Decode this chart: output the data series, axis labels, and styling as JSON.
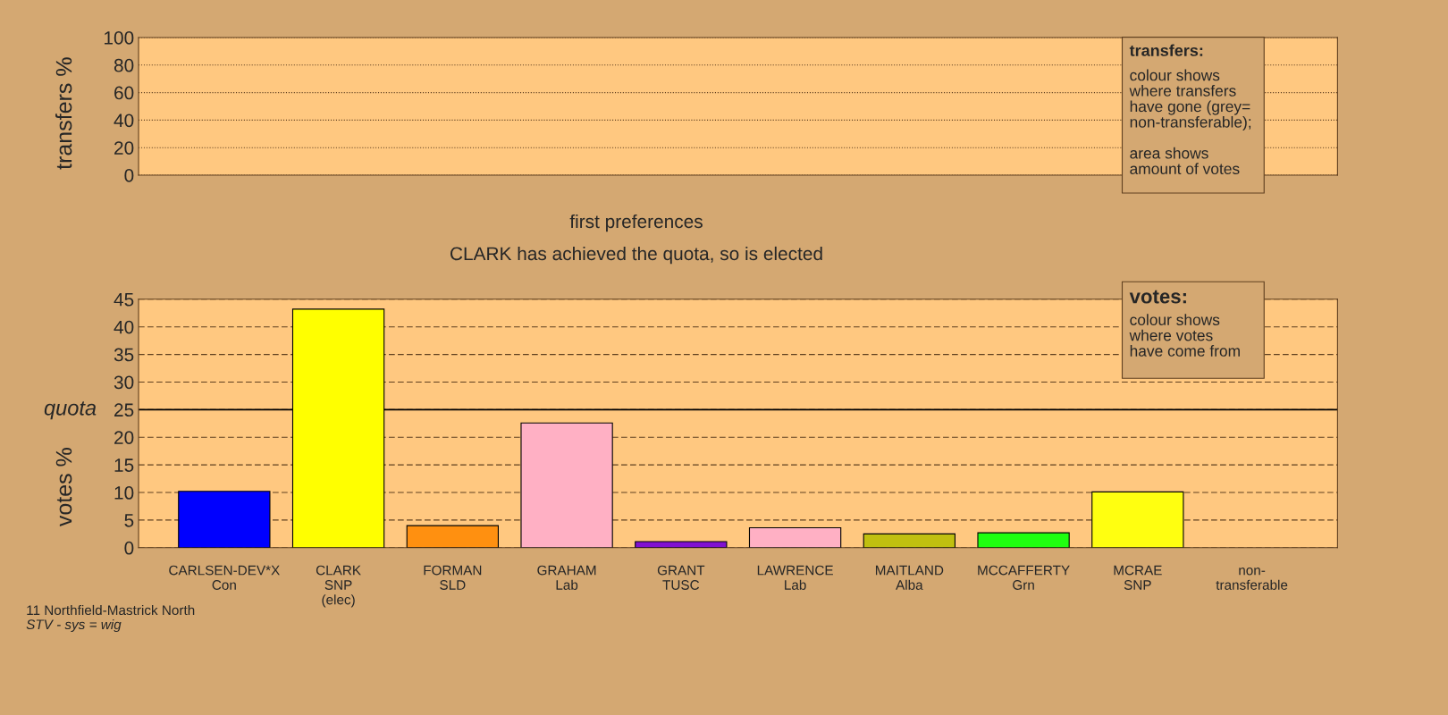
{
  "chart_data": [
    {
      "type": "bar",
      "ylabel": "transfers %",
      "categories": [
        null,
        null,
        null,
        null,
        null,
        null,
        null,
        null,
        null,
        null
      ],
      "values": [
        0,
        0,
        0,
        0,
        0,
        0,
        0,
        0,
        0,
        0
      ],
      "ylim": [
        0,
        100
      ],
      "yticks": [
        0,
        20,
        40,
        60,
        80,
        100
      ],
      "grid": "y",
      "tick_labels": "y",
      "annotations": [
        "transfers:",
        "colour shows\nwhere transfers\nhave gone (grey=\nnon-transferable);\n\narea shows\namount of votes"
      ]
    },
    {
      "type": "bar",
      "title": "first preferences",
      "subtitle": "CLARK has achieved the quota, so is elected",
      "ylabel": "votes %",
      "categories": [
        "CARLSEN-DEV*X\nCon",
        "CLARK\nSNP\n(elec)",
        "FORMAN\nSLD",
        "GRAHAM\nLab",
        "GRANT\nTUSC",
        "LAWRENCE\nLab",
        "MAITLAND\nAlba",
        "MCCAFFERTY\nGrn",
        "MCRAE\nSNP",
        "non-\ntransferable"
      ],
      "values": [
        10.2,
        43.2,
        4.0,
        22.6,
        1.1,
        3.6,
        2.5,
        2.7,
        10.1,
        null
      ],
      "colors": [
        "#0000ff",
        "#ffff00",
        "#ff9010",
        "#ffb0c4",
        "#8010d0",
        "#ffb0c4",
        "#c0c010",
        "#20ff10",
        "#ffff10",
        "#ffffff"
      ],
      "ylim": [
        0,
        45
      ],
      "yticks": [
        0,
        5,
        10,
        15,
        20,
        25,
        30,
        35,
        40,
        45
      ],
      "grid": "y",
      "ref_lines": [
        {
          "axis": "y",
          "value": 25,
          "label": "quota"
        }
      ],
      "annotations": [
        "votes:",
        "colour shows\nwhere votes\nhave come from",
        "11 Northfield-Mastrick North",
        "STV - sys = wig"
      ]
    }
  ]
}
